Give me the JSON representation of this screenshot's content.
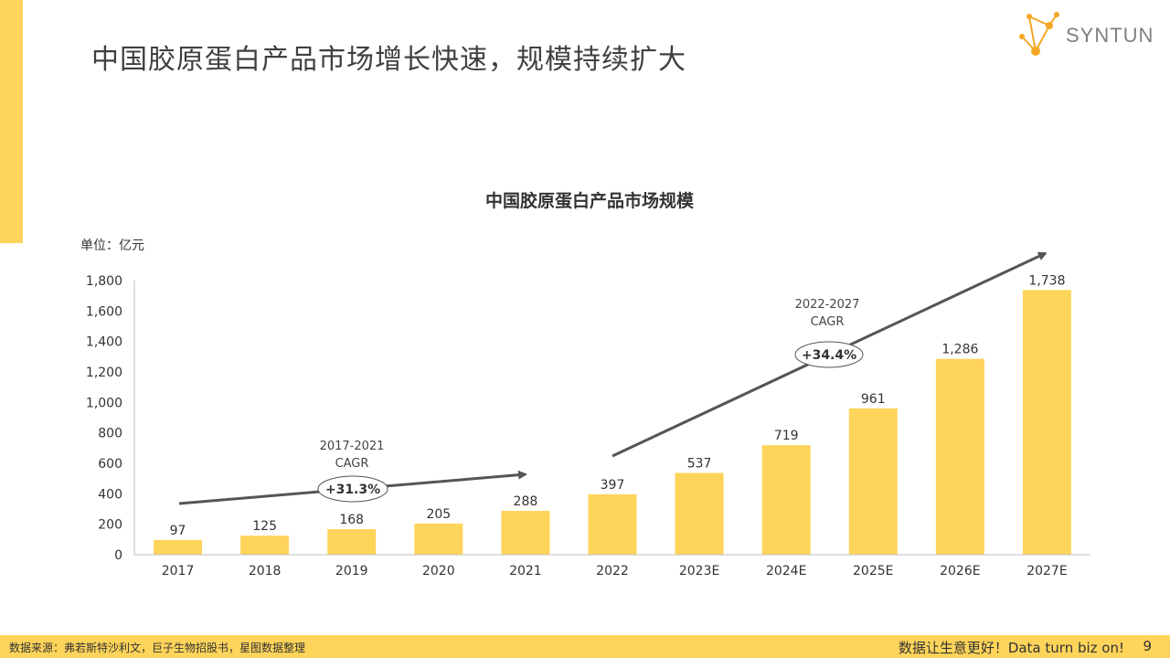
{
  "slide": {
    "title": "中国胶原蛋白产品市场增长快速，规模持续扩大",
    "logo_text": "SYNTUN",
    "footer_source": "数据来源：弗若斯特沙利文，巨子生物招股书，星图数据整理",
    "footer_slogan": "数据让生意更好！Data  turn  biz  on!",
    "page_number": "9"
  },
  "colors": {
    "bar": "#FFD45A",
    "accent": "#FFD45A",
    "arrow": "#555555",
    "logo_orange": "#F5A623"
  },
  "chart_data": {
    "type": "bar",
    "title": "中国胶原蛋白产品市场规模",
    "unit_label": "单位：亿元",
    "categories": [
      "2017",
      "2018",
      "2019",
      "2020",
      "2021",
      "2022",
      "2023E",
      "2024E",
      "2025E",
      "2026E",
      "2027E"
    ],
    "values": [
      97,
      125,
      168,
      205,
      288,
      397,
      537,
      719,
      961,
      1286,
      1738
    ],
    "value_labels": [
      "97",
      "125",
      "168",
      "205",
      "288",
      "397",
      "537",
      "719",
      "961",
      "1,286",
      "1,738"
    ],
    "ylim": [
      0,
      1800
    ],
    "yticks": [
      0,
      200,
      400,
      600,
      800,
      1000,
      1200,
      1400,
      1600,
      1800
    ],
    "ytick_labels": [
      "0",
      "200",
      "400",
      "600",
      "800",
      "1,000",
      "1,200",
      "1,400",
      "1,600",
      "1,800"
    ],
    "grid": false,
    "annotations": [
      {
        "period": "2017-2021",
        "label": "CAGR",
        "value": "+31.3%"
      },
      {
        "period": "2022-2027",
        "label": "CAGR",
        "value": "+34.4%"
      }
    ]
  }
}
